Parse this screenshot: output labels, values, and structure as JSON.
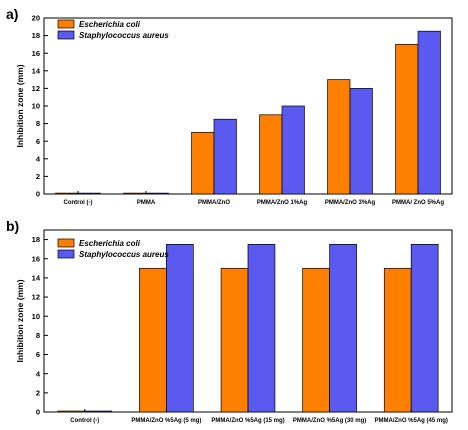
{
  "colors": {
    "series_1": "#FF7F00",
    "series_2": "#5A5AF0",
    "axis": "#000000",
    "background": "#FFFFFF"
  },
  "chart_data": [
    {
      "type": "bar",
      "panel_label": "a)",
      "ylabel": "Inhibition zone (mm)",
      "xlabel": "",
      "ylim": [
        0,
        20
      ],
      "yticks": [
        0,
        2,
        4,
        6,
        8,
        10,
        12,
        14,
        16,
        18,
        20
      ],
      "categories": [
        "Control (-)",
        "PMMA",
        "PMMA/ZnO",
        "PMMA/ZnO  1%Ag",
        "PMMA/ZnO  3%Ag",
        "PMMA/ ZnO 5%Ag"
      ],
      "series": [
        {
          "name": "Escherichia coli",
          "values": [
            0.1,
            0.1,
            7.0,
            9.0,
            13.0,
            17.0
          ]
        },
        {
          "name": "Staphylococcus aureus",
          "values": [
            0.1,
            0.1,
            8.5,
            10.0,
            12.0,
            18.5
          ]
        }
      ],
      "legend_position": "top-left",
      "grid": false
    },
    {
      "type": "bar",
      "panel_label": "b)",
      "ylabel": "Inhibition zone (mm)",
      "xlabel": "",
      "ylim": [
        0,
        19
      ],
      "yticks": [
        0,
        2,
        4,
        6,
        8,
        10,
        12,
        14,
        16,
        18
      ],
      "categories": [
        "Control (-)",
        "PMMA/ZnO %5Ag (5 mg)",
        "PMMA/ZnO %5Ag (15 mg)",
        "PMMA/ZnO %5Ag (30 mg)",
        "PMMA/ZnO %5Ag (45 mg)"
      ],
      "series": [
        {
          "name": "Escherichia coli",
          "values": [
            0.1,
            15.0,
            15.0,
            15.0,
            15.0
          ]
        },
        {
          "name": "Staphylococcus aureus",
          "values": [
            0.1,
            17.5,
            17.5,
            17.5,
            17.5
          ]
        }
      ],
      "legend_position": "top-left",
      "grid": false
    }
  ]
}
